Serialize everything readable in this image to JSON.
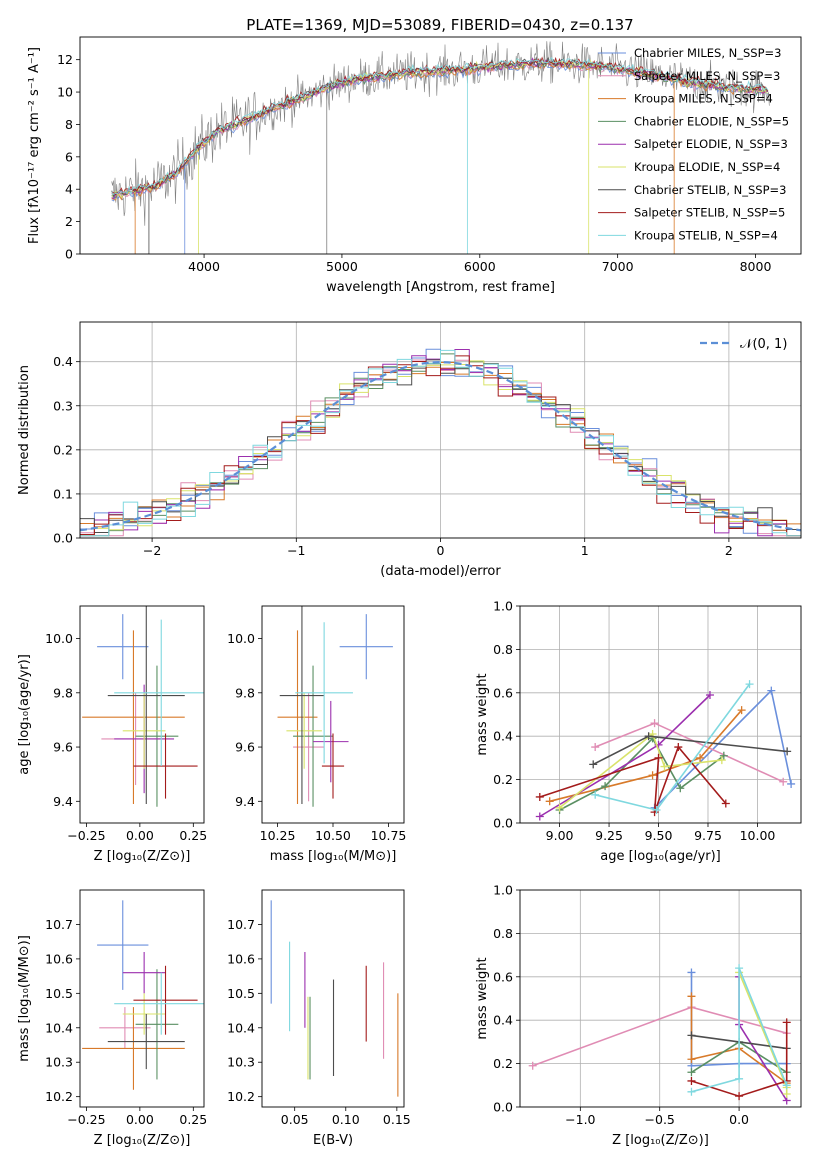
{
  "title": "PLATE=1369, MJD=53089, FIBERID=0430, z=0.137",
  "colors": {
    "Chabrier MILES": "#6a8fdc",
    "Salpeter MILES": "#e08cb4",
    "Kroupa MILES": "#d87a2a",
    "Chabrier ELODIE": "#5a8f62",
    "Salpeter ELODIE": "#9b2fae",
    "Kroupa ELODIE": "#d9e36a",
    "Chabrier STELIB": "#4d4d4d",
    "Salpeter STELIB": "#a31b1b",
    "Kroupa STELIB": "#7fd8df",
    "normal": "#5b8fd6",
    "data": "#7f7f7f"
  },
  "chart_data": [
    {
      "id": "spectrum",
      "type": "line",
      "xlabel": "wavelength [Angstrom, rest frame]",
      "ylabel": "Flux [fλ10⁻¹⁷ erg cm⁻² s⁻¹ A⁻¹]",
      "xlim": [
        3100,
        8330
      ],
      "ylim": [
        0,
        13.4
      ],
      "xticks": [
        "4000",
        "5000",
        "6000",
        "7000",
        "8000"
      ],
      "yticks": [
        "0",
        "2",
        "4",
        "6",
        "8",
        "10",
        "12"
      ],
      "continuum": [
        [
          3330,
          3.6
        ],
        [
          3500,
          3.9
        ],
        [
          3650,
          4.2
        ],
        [
          3800,
          5.0
        ],
        [
          3950,
          6.5
        ],
        [
          4100,
          7.6
        ],
        [
          4300,
          8.2
        ],
        [
          4500,
          9.0
        ],
        [
          4700,
          9.6
        ],
        [
          4900,
          10.3
        ],
        [
          5100,
          10.8
        ],
        [
          5300,
          11.0
        ],
        [
          5500,
          11.2
        ],
        [
          5700,
          11.3
        ],
        [
          5900,
          11.4
        ],
        [
          6100,
          11.6
        ],
        [
          6300,
          11.7
        ],
        [
          6500,
          11.8
        ],
        [
          6700,
          11.7
        ],
        [
          6900,
          11.6
        ],
        [
          7100,
          11.3
        ],
        [
          7300,
          11.0
        ],
        [
          7500,
          10.6
        ],
        [
          7700,
          10.4
        ],
        [
          7900,
          10.2
        ],
        [
          8100,
          10.1
        ]
      ],
      "legend_position": "right",
      "legend": [
        "Chabrier MILES, N_SSP=3",
        "Salpeter MILES, N_SSP=3",
        "Kroupa MILES, N_SSP=4",
        "Chabrier ELODIE, N_SSP=5",
        "Salpeter ELODIE, N_SSP=3",
        "Kroupa ELODIE, N_SSP=4",
        "Chabrier STELIB, N_SSP=3",
        "Salpeter STELIB, N_SSP=5",
        "Kroupa STELIB, N_SSP=4"
      ]
    },
    {
      "id": "residuals",
      "type": "histogram",
      "xlabel": "(data-model)/error",
      "ylabel": "Normed distribution",
      "xlim": [
        -2.5,
        2.5
      ],
      "ylim": [
        0,
        0.49
      ],
      "bin_width": 0.1,
      "xticks": [
        "−2",
        "−1",
        "0",
        "1",
        "2"
      ],
      "yticks": [
        "0.0",
        "0.1",
        "0.2",
        "0.3",
        "0.4"
      ],
      "legend": [
        "𝒩(0, 1)"
      ],
      "legend_position": "top-right",
      "grid": true
    },
    {
      "id": "age_vs_Z",
      "type": "errorbar",
      "xlabel": "Z [log₁₀(Z/Z⊙)]",
      "ylabel": "age  [log₁₀(age/yr)]",
      "xlim": [
        -0.28,
        0.3
      ],
      "ylim": [
        9.32,
        10.12
      ],
      "xticks": [
        "−0.25",
        "0.00",
        "0.25"
      ],
      "yticks": [
        "9.4",
        "9.6",
        "9.8",
        "10.0"
      ],
      "points": [
        {
          "model": "Chabrier MILES",
          "x": -0.08,
          "xerr": 0.12,
          "y": 9.97,
          "yerr": 0.12
        },
        {
          "model": "Salpeter MILES",
          "x": -0.02,
          "xerr": 0.16,
          "y": 9.63,
          "yerr": 0.17
        },
        {
          "model": "Kroupa MILES",
          "x": -0.03,
          "xerr": 0.24,
          "y": 9.71,
          "yerr": 0.32
        },
        {
          "model": "Chabrier ELODIE",
          "x": 0.08,
          "xerr": 0.1,
          "y": 9.64,
          "yerr": 0.26
        },
        {
          "model": "Salpeter ELODIE",
          "x": 0.02,
          "xerr": 0.14,
          "y": 9.63,
          "yerr": 0.2
        },
        {
          "model": "Kroupa ELODIE",
          "x": 0.02,
          "xerr": 0.1,
          "y": 9.66,
          "yerr": 0.14
        },
        {
          "model": "Chabrier STELIB",
          "x": 0.03,
          "xerr": 0.18,
          "y": 9.79,
          "yerr": 0.4
        },
        {
          "model": "Salpeter STELIB",
          "x": 0.12,
          "xerr": 0.15,
          "y": 9.53,
          "yerr": 0.12
        },
        {
          "model": "Kroupa STELIB",
          "x": 0.1,
          "xerr": 0.22,
          "y": 9.8,
          "yerr": 0.27
        }
      ]
    },
    {
      "id": "age_vs_mass",
      "type": "errorbar",
      "xlabel": "mass [log₁₀(M/M⊙)]",
      "ylabel": "",
      "xlim": [
        10.18,
        10.82
      ],
      "ylim": [
        9.32,
        10.12
      ],
      "xticks": [
        "10.25",
        "10.50",
        "10.75"
      ],
      "yticks": [
        "9.4",
        "9.6",
        "9.8",
        "10.0"
      ],
      "points": [
        {
          "model": "Chabrier MILES",
          "x": 10.65,
          "xerr": 0.12,
          "y": 9.97,
          "yerr": 0.12
        },
        {
          "model": "Salpeter MILES",
          "x": 10.39,
          "xerr": 0.07,
          "y": 9.6,
          "yerr": 0.2
        },
        {
          "model": "Kroupa MILES",
          "x": 10.34,
          "xerr": 0.09,
          "y": 9.71,
          "yerr": 0.32
        },
        {
          "model": "Chabrier ELODIE",
          "x": 10.41,
          "xerr": 0.09,
          "y": 9.64,
          "yerr": 0.26
        },
        {
          "model": "Salpeter ELODIE",
          "x": 10.49,
          "xerr": 0.08,
          "y": 9.62,
          "yerr": 0.15
        },
        {
          "model": "Kroupa ELODIE",
          "x": 10.37,
          "xerr": 0.08,
          "y": 9.66,
          "yerr": 0.14
        },
        {
          "model": "Chabrier STELIB",
          "x": 10.36,
          "xerr": 0.1,
          "y": 9.79,
          "yerr": 0.4
        },
        {
          "model": "Salpeter STELIB",
          "x": 10.5,
          "xerr": 0.05,
          "y": 9.53,
          "yerr": 0.12
        },
        {
          "model": "Kroupa STELIB",
          "x": 10.46,
          "xerr": 0.13,
          "y": 9.8,
          "yerr": 0.26
        }
      ]
    },
    {
      "id": "weight_vs_age",
      "type": "line",
      "xlabel": "age  [log₁₀(age/yr)]",
      "ylabel": "mass weight",
      "xlim": [
        8.8,
        10.22
      ],
      "ylim": [
        0,
        1
      ],
      "xticks": [
        "9.00",
        "9.25",
        "9.50",
        "9.75",
        "10.00"
      ],
      "yticks": [
        "0.0",
        "0.2",
        "0.4",
        "0.6",
        "0.8",
        "1.0"
      ],
      "grid": true,
      "series": [
        {
          "model": "Chabrier MILES",
          "x": [
            9.48,
            10.07,
            10.17
          ],
          "y": [
            0.07,
            0.61,
            0.18
          ]
        },
        {
          "model": "Salpeter MILES",
          "x": [
            9.18,
            9.48,
            10.13
          ],
          "y": [
            0.35,
            0.46,
            0.19
          ]
        },
        {
          "model": "Kroupa MILES",
          "x": [
            8.95,
            9.47,
            9.71,
            9.92
          ],
          "y": [
            0.1,
            0.22,
            0.3,
            0.52
          ]
        },
        {
          "model": "Chabrier ELODIE",
          "x": [
            9.0,
            9.23,
            9.47,
            9.61,
            9.83
          ],
          "y": [
            0.06,
            0.17,
            0.39,
            0.16,
            0.31
          ]
        },
        {
          "model": "Salpeter ELODIE",
          "x": [
            8.9,
            9.5,
            9.76
          ],
          "y": [
            0.03,
            0.36,
            0.59
          ]
        },
        {
          "model": "Kroupa ELODIE",
          "x": [
            9.0,
            9.47,
            9.53,
            9.82
          ],
          "y": [
            0.07,
            0.41,
            0.26,
            0.29
          ]
        },
        {
          "model": "Chabrier STELIB",
          "x": [
            9.17,
            9.45,
            10.15
          ],
          "y": [
            0.27,
            0.4,
            0.33
          ]
        },
        {
          "model": "Salpeter STELIB",
          "x": [
            8.9,
            9.5,
            9.48,
            9.6,
            9.84
          ],
          "y": [
            0.12,
            0.3,
            0.05,
            0.35,
            0.09
          ]
        },
        {
          "model": "Kroupa STELIB",
          "x": [
            9.18,
            9.49,
            9.96
          ],
          "y": [
            0.13,
            0.06,
            0.64
          ]
        }
      ]
    },
    {
      "id": "mass_vs_Z",
      "type": "errorbar",
      "xlabel": "Z [log₁₀(Z/Z⊙)]",
      "ylabel": "mass [log₁₀(M/M⊙)]",
      "xlim": [
        -0.28,
        0.3
      ],
      "ylim": [
        10.17,
        10.8
      ],
      "xticks": [
        "−0.25",
        "0.00",
        "0.25"
      ],
      "yticks": [
        "10.2",
        "10.3",
        "10.4",
        "10.5",
        "10.6",
        "10.7"
      ],
      "points": [
        {
          "model": "Chabrier MILES",
          "x": -0.08,
          "xerr": 0.12,
          "y": 10.64,
          "yerr": 0.13
        },
        {
          "model": "Salpeter MILES",
          "x": -0.07,
          "xerr": 0.12,
          "y": 10.4,
          "yerr": 0.06
        },
        {
          "model": "Kroupa MILES",
          "x": -0.03,
          "xerr": 0.24,
          "y": 10.34,
          "yerr": 0.12
        },
        {
          "model": "Chabrier ELODIE",
          "x": 0.08,
          "xerr": 0.1,
          "y": 10.41,
          "yerr": 0.16
        },
        {
          "model": "Salpeter ELODIE",
          "x": 0.02,
          "xerr": 0.1,
          "y": 10.56,
          "yerr": 0.06
        },
        {
          "model": "Kroupa ELODIE",
          "x": 0.02,
          "xerr": 0.1,
          "y": 10.44,
          "yerr": 0.06
        },
        {
          "model": "Chabrier STELIB",
          "x": 0.03,
          "xerr": 0.18,
          "y": 10.36,
          "yerr": 0.08
        },
        {
          "model": "Salpeter STELIB",
          "x": 0.12,
          "xerr": 0.15,
          "y": 10.48,
          "yerr": 0.1
        },
        {
          "model": "Kroupa STELIB",
          "x": 0.1,
          "xerr": 0.22,
          "y": 10.47,
          "yerr": 0.09
        }
      ]
    },
    {
      "id": "mass_vs_ebv",
      "type": "errorbar",
      "xlabel": "E(B-V)",
      "ylabel": "",
      "xlim": [
        0.018,
        0.157
      ],
      "ylim": [
        10.17,
        10.8
      ],
      "xticks": [
        "0.05",
        "0.10",
        "0.15"
      ],
      "yticks": [
        "10.2",
        "10.3",
        "10.4",
        "10.5",
        "10.6",
        "10.7"
      ],
      "points": [
        {
          "model": "Chabrier MILES",
          "x": 0.027,
          "y": 10.62,
          "yerr": 0.15
        },
        {
          "model": "Salpeter MILES",
          "x": 0.137,
          "y": 10.45,
          "yerr": 0.14
        },
        {
          "model": "Kroupa MILES",
          "x": 0.151,
          "y": 10.35,
          "yerr": 0.15
        },
        {
          "model": "Chabrier ELODIE",
          "x": 0.065,
          "y": 10.37,
          "yerr": 0.12
        },
        {
          "model": "Salpeter ELODIE",
          "x": 0.06,
          "y": 10.51,
          "yerr": 0.11
        },
        {
          "model": "Kroupa ELODIE",
          "x": 0.063,
          "y": 10.37,
          "yerr": 0.12
        },
        {
          "model": "Chabrier STELIB",
          "x": 0.088,
          "y": 10.4,
          "yerr": 0.14
        },
        {
          "model": "Salpeter STELIB",
          "x": 0.12,
          "y": 10.47,
          "yerr": 0.11
        },
        {
          "model": "Kroupa STELIB",
          "x": 0.045,
          "y": 10.52,
          "yerr": 0.13
        }
      ]
    },
    {
      "id": "weight_vs_Z",
      "type": "line",
      "xlabel": "Z [log₁₀(Z/Z⊙)]",
      "ylabel": "mass weight",
      "xlim": [
        -1.38,
        0.39
      ],
      "ylim": [
        0,
        1
      ],
      "xticks": [
        "−1.0",
        "−0.5",
        "0.0"
      ],
      "yticks": [
        "0.0",
        "0.2",
        "0.4",
        "0.6",
        "0.8",
        "1.0"
      ],
      "grid": true,
      "series": [
        {
          "model": "Chabrier MILES",
          "x": [
            -0.3,
            -0.3,
            0.0,
            0.3
          ],
          "y": [
            0.62,
            0.19,
            0.2,
            0.2
          ]
        },
        {
          "model": "Salpeter MILES",
          "x": [
            -1.3,
            -0.3,
            0.3
          ],
          "y": [
            0.19,
            0.46,
            0.34
          ]
        },
        {
          "model": "Kroupa MILES",
          "x": [
            -0.3,
            -0.3,
            0.0,
            0.3
          ],
          "y": [
            0.51,
            0.22,
            0.27,
            0.11
          ]
        },
        {
          "model": "Chabrier ELODIE",
          "x": [
            -0.3,
            0.0,
            0.3
          ],
          "y": [
            0.16,
            0.3,
            0.16
          ]
        },
        {
          "model": "Salpeter ELODIE",
          "x": [
            0.0,
            0.0,
            0.3
          ],
          "y": [
            0.6,
            0.38,
            0.03
          ]
        },
        {
          "model": "Kroupa ELODIE",
          "x": [
            0.0,
            0.3,
            0.3
          ],
          "y": [
            0.62,
            0.09,
            0.06
          ]
        },
        {
          "model": "Chabrier STELIB",
          "x": [
            -0.3,
            0.3
          ],
          "y": [
            0.33,
            0.27
          ]
        },
        {
          "model": "Salpeter STELIB",
          "x": [
            -0.3,
            0.0,
            0.3,
            0.3
          ],
          "y": [
            0.12,
            0.05,
            0.12,
            0.39
          ]
        },
        {
          "model": "Kroupa STELIB",
          "x": [
            -0.3,
            0.0,
            0.0,
            0.3
          ],
          "y": [
            0.07,
            0.13,
            0.64,
            0.1
          ]
        }
      ]
    }
  ]
}
